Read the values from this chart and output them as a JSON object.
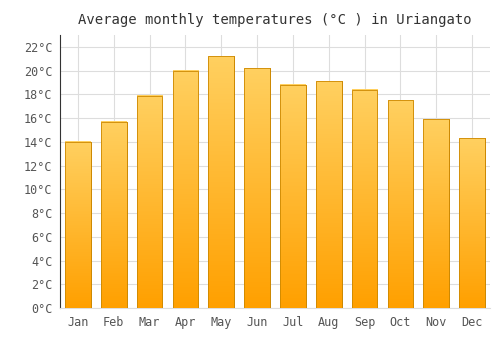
{
  "title": "Average monthly temperatures (°C ) in Uriangato",
  "months": [
    "Jan",
    "Feb",
    "Mar",
    "Apr",
    "May",
    "Jun",
    "Jul",
    "Aug",
    "Sep",
    "Oct",
    "Nov",
    "Dec"
  ],
  "values": [
    14.0,
    15.7,
    17.9,
    20.0,
    21.2,
    20.2,
    18.8,
    19.1,
    18.4,
    17.5,
    15.9,
    14.3
  ],
  "bar_color_top": "#FFB347",
  "bar_color_bottom": "#FFA000",
  "bar_edge_color": "#CC8800",
  "ylim": [
    0,
    23
  ],
  "ytick_step": 2,
  "background_color": "#ffffff",
  "grid_color": "#dddddd",
  "title_fontsize": 10,
  "tick_fontsize": 8.5,
  "font_family": "monospace"
}
